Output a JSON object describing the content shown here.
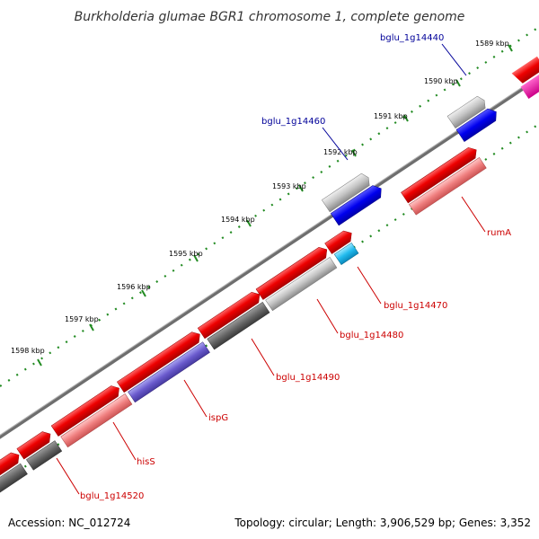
{
  "title": "Burkholderia glumae BGR1 chromosome 1, complete genome",
  "footer": {
    "accession": "Accession: NC_012724",
    "topology": "Topology: circular; Length: 3,906,529 bp; Genes: 3,352"
  },
  "ticks": [
    "1589 kbp",
    "1590 kbp",
    "1591 kbp",
    "1592 kbp",
    "1593 kbp",
    "1594 kbp",
    "1595 kbp",
    "1596 kbp",
    "1597 kbp",
    "1598 kbp"
  ],
  "gene_labels": {
    "top": [
      "bglu_1g14440",
      "bglu_1g14460"
    ],
    "bottom": [
      "rumA",
      "bglu_1g14470",
      "bglu_1g14480",
      "bglu_1g14490",
      "ispG",
      "hisS",
      "bglu_1g14520"
    ]
  },
  "colors": {
    "cds_forward": "#ff0000",
    "cds_reverse": "#0000ff",
    "backbone": "#777777",
    "tick": "#228b22",
    "label_top": "#000099",
    "label_bottom": "#cc0000"
  }
}
